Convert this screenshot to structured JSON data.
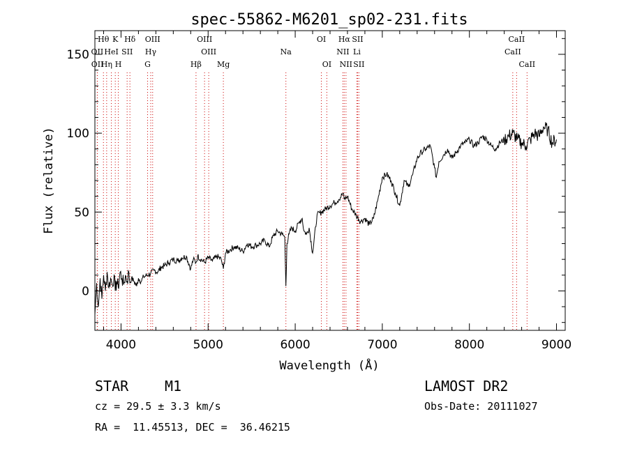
{
  "chart_data": {
    "type": "line",
    "title": "spec-55862-M6201_sp02-231.fits",
    "xlabel": "Wavelength (Å)",
    "ylabel": "Flux (relative)",
    "xlim": [
      3700,
      9100
    ],
    "ylim": [
      -25,
      165
    ],
    "x_ticks": [
      4000,
      5000,
      6000,
      7000,
      8000,
      9000
    ],
    "y_ticks": [
      0,
      50,
      100,
      150
    ],
    "grid": false,
    "series": [
      {
        "x": [
          3700,
          3720,
          3740,
          3760,
          3780,
          3800,
          3820,
          3840,
          3860,
          3880,
          3900,
          3920,
          3933,
          3950,
          3968,
          3990,
          4010,
          4030,
          4050,
          4070,
          4090,
          4102,
          4120,
          4150,
          4180,
          4200,
          4230,
          4260,
          4300,
          4340,
          4380,
          4420,
          4460,
          4500,
          4550,
          4600,
          4650,
          4700,
          4750,
          4800,
          4830,
          4861,
          4880,
          4920,
          4960,
          5000,
          5050,
          5100,
          5150,
          5175,
          5200,
          5250,
          5300,
          5350,
          5400,
          5450,
          5500,
          5550,
          5600,
          5650,
          5700,
          5750,
          5800,
          5850,
          5880,
          5893,
          5905,
          5930,
          5960,
          6000,
          6050,
          6080,
          6100,
          6130,
          6160,
          6200,
          6250,
          6300,
          6350,
          6400,
          6450,
          6500,
          6550,
          6563,
          6600,
          6650,
          6700,
          6750,
          6800,
          6850,
          6900,
          6950,
          7000,
          7050,
          7100,
          7150,
          7200,
          7250,
          7300,
          7350,
          7400,
          7450,
          7500,
          7550,
          7600,
          7620,
          7650,
          7700,
          7750,
          7800,
          7850,
          7900,
          7950,
          8000,
          8050,
          8100,
          8150,
          8200,
          8250,
          8300,
          8350,
          8400,
          8450,
          8500,
          8550,
          8600,
          8650,
          8700,
          8750,
          8800,
          8850,
          8900,
          8950,
          9000
        ],
        "y": [
          -15,
          5,
          -10,
          8,
          -5,
          10,
          0,
          12,
          2,
          8,
          4,
          10,
          0,
          6,
          2,
          12,
          8,
          4,
          10,
          6,
          12,
          5,
          8,
          6,
          3,
          8,
          6,
          9,
          10,
          11,
          13,
          12,
          15,
          16,
          18,
          20,
          19,
          21,
          22,
          14,
          20,
          18,
          22,
          20,
          18,
          21,
          19,
          22,
          20,
          14,
          24,
          26,
          28,
          27,
          25,
          30,
          28,
          29,
          30,
          32,
          28,
          35,
          38,
          36,
          34,
          3,
          30,
          36,
          40,
          38,
          44,
          46,
          38,
          36,
          40,
          24,
          48,
          50,
          52,
          54,
          56,
          58,
          62,
          58,
          60,
          52,
          48,
          44,
          46,
          42,
          46,
          58,
          72,
          74,
          70,
          62,
          54,
          70,
          66,
          74,
          84,
          88,
          90,
          92,
          78,
          72,
          82,
          86,
          90,
          84,
          88,
          92,
          94,
          96,
          92,
          94,
          98,
          96,
          92,
          90,
          94,
          96,
          98,
          100,
          96,
          94,
          92,
          96,
          100,
          98,
          104,
          102,
          94,
          96
        ]
      }
    ],
    "line_markers": [
      {
        "label": "Hθ",
        "x": 3798,
        "row": 0
      },
      {
        "label": "OII",
        "x": 3727,
        "row": 1
      },
      {
        "label": "OII",
        "x": 3729,
        "row": 2
      },
      {
        "label": "K",
        "x": 3934,
        "row": 0
      },
      {
        "label": "HeI",
        "x": 3889,
        "row": 1
      },
      {
        "label": "Hη",
        "x": 3835,
        "row": 2
      },
      {
        "label": "SII",
        "x": 4070,
        "row": 1
      },
      {
        "label": "H",
        "x": 3969,
        "row": 2
      },
      {
        "label": "Hδ",
        "x": 4102,
        "row": 0
      },
      {
        "label": "OIII",
        "x": 4363,
        "row": 0
      },
      {
        "label": "Hγ",
        "x": 4341,
        "row": 1
      },
      {
        "label": "G",
        "x": 4305,
        "row": 2
      },
      {
        "label": "OIII",
        "x": 4959,
        "row": 0
      },
      {
        "label": "OIII",
        "x": 5007,
        "row": 1
      },
      {
        "label": "Hβ",
        "x": 4861,
        "row": 2
      },
      {
        "label": "Mg",
        "x": 5175,
        "row": 2
      },
      {
        "label": "Na",
        "x": 5893,
        "row": 1
      },
      {
        "label": "OI",
        "x": 6300,
        "row": 0
      },
      {
        "label": "OI",
        "x": 6363,
        "row": 2
      },
      {
        "label": "Hα",
        "x": 6563,
        "row": 0
      },
      {
        "label": "SII",
        "x": 6716,
        "row": 0
      },
      {
        "label": "NII",
        "x": 6548,
        "row": 1
      },
      {
        "label": "Li",
        "x": 6708,
        "row": 1
      },
      {
        "label": "NII",
        "x": 6583,
        "row": 2
      },
      {
        "label": "SII",
        "x": 6731,
        "row": 2
      },
      {
        "label": "CaII",
        "x": 8542,
        "row": 0
      },
      {
        "label": "CaII",
        "x": 8498,
        "row": 1
      },
      {
        "label": "CaII",
        "x": 8662,
        "row": 2
      }
    ]
  },
  "info": {
    "object_class": "STAR",
    "subclass": "M1",
    "survey": "LAMOST DR2",
    "cz": "cz = 29.5 ± 3.3 km/s",
    "obs_date": "Obs-Date: 20111027",
    "coords": "RA =  11.45513, DEC =  36.46215"
  }
}
